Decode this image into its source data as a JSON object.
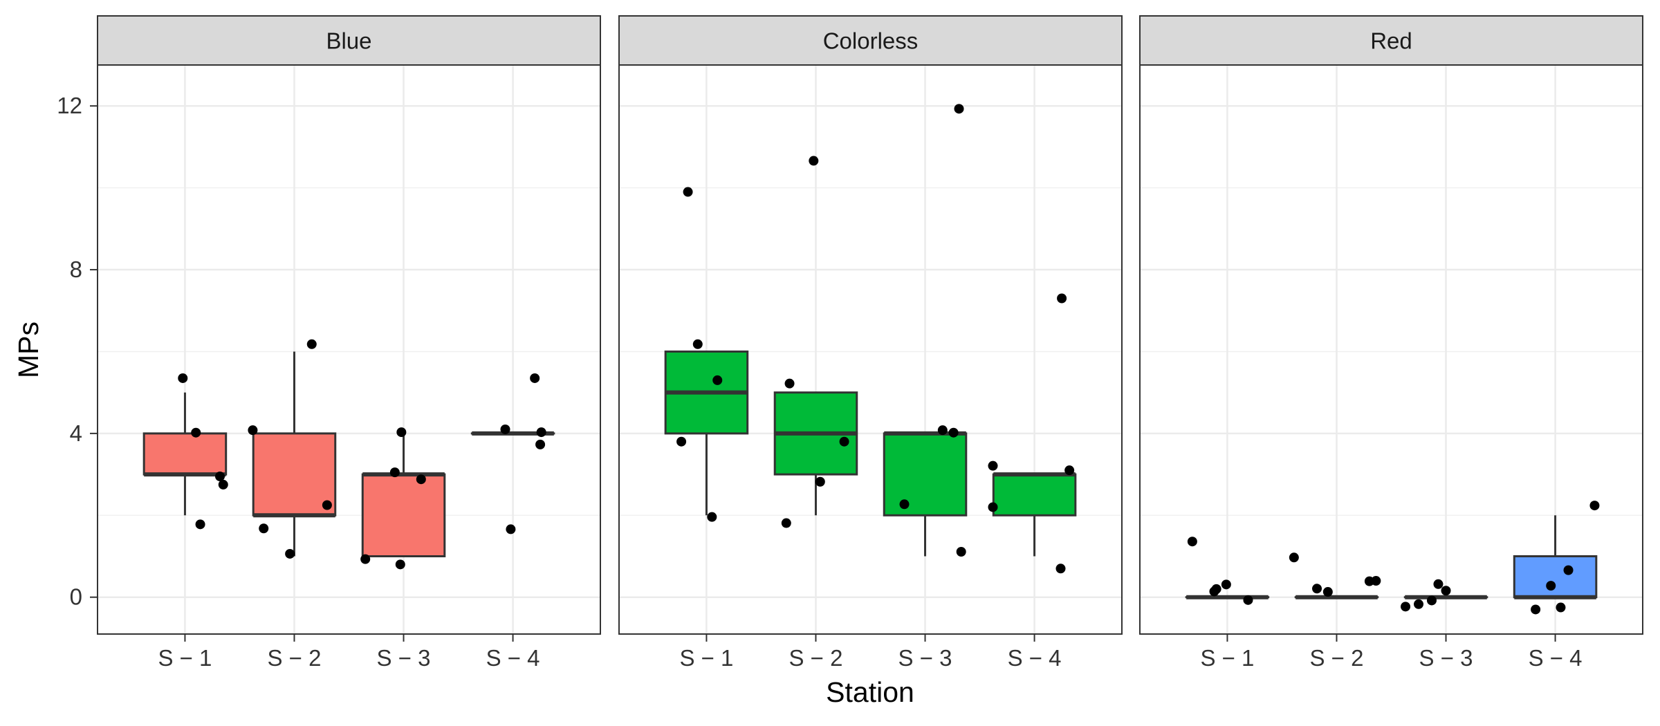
{
  "chart_data": {
    "type": "boxplot",
    "xlabel": "Station",
    "ylabel": "MPs",
    "ylim": [
      -0.9,
      13.0
    ],
    "yticks": [
      0,
      4,
      8,
      12
    ],
    "grid": true,
    "categories": [
      "S − 1",
      "S − 2",
      "S − 3",
      "S − 4"
    ],
    "facets": [
      {
        "name": "Blue",
        "fill": "#F8766D",
        "boxes": [
          {
            "category": "S − 1",
            "min": 2,
            "q1": 3,
            "median": 3,
            "q3": 4,
            "max": 5
          },
          {
            "category": "S − 2",
            "min": 1,
            "q1": 2,
            "median": 2,
            "q3": 4,
            "max": 6
          },
          {
            "category": "S − 3",
            "min": 1,
            "q1": 1,
            "median": 3,
            "q3": 3,
            "max": 4
          },
          {
            "category": "S − 4",
            "min": 4,
            "q1": 4,
            "median": 4,
            "q3": 4,
            "max": 4
          }
        ],
        "points": [
          {
            "category": "S − 1",
            "offset": -0.02,
            "y": 5.35
          },
          {
            "category": "S − 1",
            "offset": 0.1,
            "y": 4.02
          },
          {
            "category": "S − 1",
            "offset": 0.32,
            "y": 2.95
          },
          {
            "category": "S − 1",
            "offset": 0.35,
            "y": 2.75
          },
          {
            "category": "S − 1",
            "offset": 0.14,
            "y": 1.78
          },
          {
            "category": "S − 2",
            "offset": -0.38,
            "y": 4.08
          },
          {
            "category": "S − 2",
            "offset": 0.16,
            "y": 6.18
          },
          {
            "category": "S − 2",
            "offset": 0.3,
            "y": 2.25
          },
          {
            "category": "S − 2",
            "offset": -0.28,
            "y": 1.68
          },
          {
            "category": "S − 2",
            "offset": -0.04,
            "y": 1.06
          },
          {
            "category": "S − 3",
            "offset": -0.35,
            "y": 0.93
          },
          {
            "category": "S − 3",
            "offset": -0.08,
            "y": 3.05
          },
          {
            "category": "S − 3",
            "offset": 0.16,
            "y": 2.88
          },
          {
            "category": "S − 3",
            "offset": -0.03,
            "y": 0.8
          },
          {
            "category": "S − 3",
            "offset": -0.02,
            "y": 4.03
          },
          {
            "category": "S − 4",
            "offset": -0.07,
            "y": 4.1
          },
          {
            "category": "S − 4",
            "offset": 0.2,
            "y": 5.35
          },
          {
            "category": "S − 4",
            "offset": 0.26,
            "y": 4.03
          },
          {
            "category": "S − 4",
            "offset": 0.25,
            "y": 3.73
          },
          {
            "category": "S − 4",
            "offset": -0.02,
            "y": 1.66
          }
        ]
      },
      {
        "name": "Colorless",
        "fill": "#00BA38",
        "boxes": [
          {
            "category": "S − 1",
            "min": 2,
            "q1": 4,
            "median": 5,
            "q3": 6,
            "max": 6
          },
          {
            "category": "S − 2",
            "min": 2,
            "q1": 3,
            "median": 4,
            "q3": 5,
            "max": 5
          },
          {
            "category": "S − 3",
            "min": 1,
            "q1": 2,
            "median": 4,
            "q3": 4,
            "max": 4
          },
          {
            "category": "S − 4",
            "min": 1,
            "q1": 2,
            "median": 3,
            "q3": 3,
            "max": 3
          }
        ],
        "points": [
          {
            "category": "S − 1",
            "offset": -0.17,
            "y": 9.9
          },
          {
            "category": "S − 1",
            "offset": -0.08,
            "y": 6.18
          },
          {
            "category": "S − 1",
            "offset": 0.1,
            "y": 5.3
          },
          {
            "category": "S − 1",
            "offset": -0.23,
            "y": 3.8
          },
          {
            "category": "S − 1",
            "offset": 0.05,
            "y": 1.96
          },
          {
            "category": "S − 2",
            "offset": -0.24,
            "y": 5.22
          },
          {
            "category": "S − 2",
            "offset": -0.02,
            "y": 10.66
          },
          {
            "category": "S − 2",
            "offset": 0.26,
            "y": 3.8
          },
          {
            "category": "S − 2",
            "offset": 0.04,
            "y": 2.82
          },
          {
            "category": "S − 2",
            "offset": -0.27,
            "y": 1.81
          },
          {
            "category": "S − 3",
            "offset": 0.31,
            "y": 11.93
          },
          {
            "category": "S − 3",
            "offset": 0.16,
            "y": 4.08
          },
          {
            "category": "S − 3",
            "offset": 0.26,
            "y": 4.02
          },
          {
            "category": "S − 3",
            "offset": -0.19,
            "y": 2.27
          },
          {
            "category": "S − 3",
            "offset": 0.33,
            "y": 1.11
          },
          {
            "category": "S − 4",
            "offset": 0.25,
            "y": 7.3
          },
          {
            "category": "S − 4",
            "offset": -0.38,
            "y": 3.21
          },
          {
            "category": "S − 4",
            "offset": 0.32,
            "y": 3.1
          },
          {
            "category": "S − 4",
            "offset": -0.38,
            "y": 2.2
          },
          {
            "category": "S − 4",
            "offset": 0.24,
            "y": 0.7
          }
        ]
      },
      {
        "name": "Red",
        "fill": "#619CFF",
        "boxes": [
          {
            "category": "S − 1",
            "min": 0,
            "q1": 0,
            "median": 0,
            "q3": 0,
            "max": 0
          },
          {
            "category": "S − 2",
            "min": 0,
            "q1": 0,
            "median": 0,
            "q3": 0,
            "max": 0
          },
          {
            "category": "S − 3",
            "min": 0,
            "q1": 0,
            "median": 0,
            "q3": 0,
            "max": 0
          },
          {
            "category": "S − 4",
            "min": 0,
            "q1": 0,
            "median": 0,
            "q3": 1,
            "max": 2
          }
        ],
        "points": [
          {
            "category": "S − 1",
            "offset": -0.32,
            "y": 1.36
          },
          {
            "category": "S − 1",
            "offset": -0.12,
            "y": 0.14
          },
          {
            "category": "S − 1",
            "offset": -0.1,
            "y": 0.2
          },
          {
            "category": "S − 1",
            "offset": -0.01,
            "y": 0.31
          },
          {
            "category": "S − 1",
            "offset": 0.19,
            "y": -0.07
          },
          {
            "category": "S − 2",
            "offset": -0.39,
            "y": 0.97
          },
          {
            "category": "S − 2",
            "offset": -0.18,
            "y": 0.21
          },
          {
            "category": "S − 2",
            "offset": -0.08,
            "y": 0.13
          },
          {
            "category": "S − 2",
            "offset": 0.3,
            "y": 0.39
          },
          {
            "category": "S − 2",
            "offset": 0.36,
            "y": 0.4
          },
          {
            "category": "S − 3",
            "offset": -0.37,
            "y": -0.23
          },
          {
            "category": "S − 3",
            "offset": -0.25,
            "y": -0.17
          },
          {
            "category": "S − 3",
            "offset": -0.13,
            "y": -0.08
          },
          {
            "category": "S − 3",
            "offset": -0.07,
            "y": 0.32
          },
          {
            "category": "S − 3",
            "offset": 0.0,
            "y": 0.16
          },
          {
            "category": "S − 4",
            "offset": 0.36,
            "y": 2.24
          },
          {
            "category": "S − 4",
            "offset": 0.12,
            "y": 0.66
          },
          {
            "category": "S − 4",
            "offset": -0.04,
            "y": 0.28
          },
          {
            "category": "S − 4",
            "offset": -0.18,
            "y": -0.3
          },
          {
            "category": "S − 4",
            "offset": 0.05,
            "y": -0.25
          }
        ]
      }
    ]
  }
}
